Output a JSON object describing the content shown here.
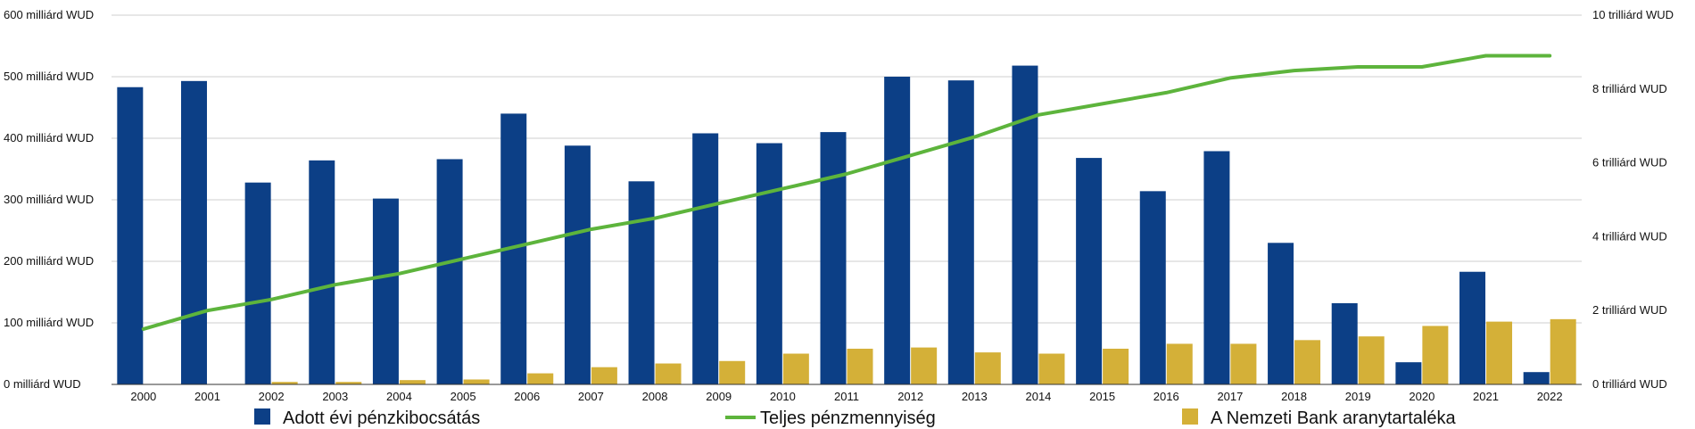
{
  "chart_data": {
    "type": "bar",
    "categories": [
      "2000",
      "2001",
      "2002",
      "2003",
      "2004",
      "2005",
      "2006",
      "2007",
      "2008",
      "2009",
      "2010",
      "2011",
      "2012",
      "2013",
      "2014",
      "2015",
      "2016",
      "2017",
      "2018",
      "2019",
      "2020",
      "2021",
      "2022"
    ],
    "series": [
      {
        "name": "Adott évi pénzkibocsátás",
        "kind": "bar",
        "axis": "left",
        "color": "#0c3f86",
        "values": [
          483,
          493,
          328,
          364,
          302,
          366,
          440,
          388,
          330,
          408,
          392,
          410,
          500,
          494,
          518,
          368,
          314,
          379,
          230,
          132,
          36,
          183,
          20
        ]
      },
      {
        "name": "A Nemzeti Bank aranytartaléka",
        "kind": "bar",
        "axis": "left",
        "color": "#d4b038",
        "values": [
          0,
          0,
          4,
          4,
          7,
          8,
          18,
          28,
          34,
          38,
          50,
          58,
          60,
          52,
          50,
          58,
          66,
          66,
          72,
          78,
          95,
          102,
          106
        ]
      },
      {
        "name": "Teljes pénzmennyiség",
        "kind": "line",
        "axis": "right",
        "color": "#5db43c",
        "values": [
          1.5,
          2.0,
          2.3,
          2.7,
          3.0,
          3.4,
          3.8,
          4.2,
          4.5,
          4.9,
          5.3,
          5.7,
          6.2,
          6.7,
          7.3,
          7.6,
          7.9,
          8.3,
          8.5,
          8.6,
          8.6,
          8.9,
          8.9
        ]
      }
    ],
    "y_left": {
      "ylim": [
        0,
        600
      ],
      "ticks": [
        0,
        100,
        200,
        300,
        400,
        500,
        600
      ],
      "tick_labels": [
        "0 milliárd WUD",
        "100 milliárd WUD",
        "200 milliárd WUD",
        "300 milliárd WUD",
        "400 milliárd WUD",
        "500 milliárd WUD",
        "600 milliárd WUD"
      ]
    },
    "y_right": {
      "ylim": [
        0,
        10
      ],
      "ticks": [
        0,
        2,
        4,
        6,
        8,
        10
      ],
      "tick_labels": [
        "0 trilliárd WUD",
        "2 trilliárd WUD",
        "4 trilliárd WUD",
        "6 trilliárd WUD",
        "8 trilliárd WUD",
        "10 trilliárd WUD"
      ]
    },
    "legend": {
      "placement": "bottom",
      "items": [
        "Adott évi pénzkibocsátás",
        "Teljes pénzmennyiség",
        "A Nemzeti Bank aranytartaléka"
      ]
    },
    "grid": true,
    "gridline_color": "#cfcfcf"
  }
}
